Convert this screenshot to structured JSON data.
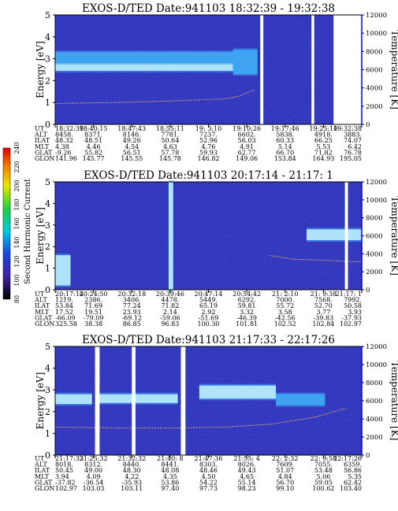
{
  "chart_data": [
    {
      "type": "heatmap",
      "title": "EXOS-D/TED   Date:941103   18:32:39 - 19:32:38",
      "ylabel": "Energy [eV]",
      "y2label": "Temperature [K]",
      "ylim": [
        0,
        5
      ],
      "y2lim": [
        0,
        12000
      ],
      "yticks": [
        "0",
        "1",
        "2",
        "3",
        "4",
        "5"
      ],
      "y2ticks": [
        "0",
        "2000",
        "4000",
        "6000",
        "8000",
        "10000",
        "12000"
      ],
      "x": [
        "18:32:39",
        "18:40:15",
        "18:47:43",
        "18:55:11",
        "19: 3:10",
        "19:10:26",
        "19:17:46",
        "19:25:10",
        "19:32:38"
      ],
      "rows": [
        {
          "label": "UT",
          "values": [
            "18:32:39",
            "18:40:15",
            "18:47:43",
            "18:55:11",
            "19: 3:10",
            "19:10:26",
            "19:17:46",
            "19:25:10",
            "19:32:38"
          ]
        },
        {
          "label": "ALT",
          "values": [
            "8458.",
            "8371.",
            "8146.",
            "7781.",
            "7237.",
            "6602.",
            "5838.",
            "4918.",
            "3883."
          ]
        },
        {
          "label": "ILAT",
          "values": [
            "48.32",
            "48.51",
            "49.26",
            "50.64",
            "52.96",
            "56.03",
            "60.33",
            "66.25",
            "74.07"
          ]
        },
        {
          "label": "MLT",
          "values": [
            "4.38",
            "4.46",
            "4.54",
            "4.63",
            "4.76",
            "4.91",
            "5.14",
            "5.53",
            "6.42"
          ]
        },
        {
          "label": "GLAT",
          "values": [
            "-9.26",
            "55.82",
            "56.51",
            "57.78",
            "59.93",
            "62.77",
            "66.70",
            "71.82",
            "76.78"
          ]
        },
        {
          "label": "GLON",
          "values": [
            "141.96",
            "145.77",
            "145.55",
            "145.78",
            "146.82",
            "149.06",
            "153.84",
            "164.93",
            "195.05"
          ]
        }
      ],
      "bands": [
        {
          "x0": 0.0,
          "x1": 0.58,
          "y0": 2.45,
          "y1": 2.8,
          "intensity": "high"
        },
        {
          "x0": 0.0,
          "x1": 0.58,
          "y0": 2.8,
          "y1": 3.3,
          "intensity": "medium"
        },
        {
          "x0": 0.58,
          "x1": 0.66,
          "y0": 2.3,
          "y1": 3.4,
          "intensity": "medium"
        }
      ],
      "gaps": [
        [
          0.669,
          0.679
        ],
        [
          0.836,
          0.845
        ],
        [
          0.908,
          1.0
        ]
      ],
      "temperature": [
        [
          0.0,
          2300
        ],
        [
          0.2,
          2400
        ],
        [
          0.4,
          2600
        ],
        [
          0.55,
          2800
        ],
        [
          0.6,
          3100
        ],
        [
          0.65,
          3800
        ]
      ]
    },
    {
      "type": "heatmap",
      "title": "EXOS-D/TED   Date:941103  20:17:14 - 21:17: 1",
      "ylabel": "Energy [eV]",
      "y2label": "Temperature [K]",
      "ylim": [
        0,
        5
      ],
      "y2lim": [
        0,
        12000
      ],
      "yticks": [
        "0",
        "1",
        "2",
        "3",
        "4",
        "5"
      ],
      "y2ticks": [
        "0",
        "2000",
        "4000",
        "6000",
        "8000",
        "10000",
        "12000"
      ],
      "x": [
        "20:17:14",
        "20:24:50",
        "20:32:18",
        "20:39:46",
        "20:47:14",
        "20:54:42",
        "21: 2:10",
        "21: 9:38",
        "21:17: 1"
      ],
      "rows": [
        {
          "label": "UT",
          "values": [
            "20:17:14",
            "20:24:50",
            "20:32:18",
            "20:39:46",
            "20:47:14",
            "20:54:42",
            "21: 2:10",
            "21: 9:38",
            "21:17: 1"
          ]
        },
        {
          "label": "ALT",
          "values": [
            "1219.",
            "2386.",
            "3406.",
            "4478.",
            "5449.",
            "6292.",
            "7000.",
            "7568.",
            "7992."
          ]
        },
        {
          "label": "ILAT",
          "values": [
            "53.84",
            "71.69",
            "77.24",
            "71.82",
            "65.19",
            "59.81",
            "55.72",
            "52.70",
            "50.58"
          ]
        },
        {
          "label": "MLT",
          "values": [
            "17.52",
            "19.51",
            "23.93",
            "2.14",
            "2.92",
            "3.32",
            "3.58",
            "3.77",
            "3.93"
          ]
        },
        {
          "label": "GLAT",
          "values": [
            "-66.09",
            "-79.09",
            "-69.12",
            "-59.06",
            "-51.69",
            "-46.39",
            "-42.56",
            "-39.83",
            "-37.93"
          ]
        },
        {
          "label": "GLON",
          "values": [
            "325.58",
            "38.38",
            "86.85",
            "96.83",
            "100.30",
            "101.81",
            "102.52",
            "102.84",
            "102.97"
          ]
        }
      ],
      "bands": [
        {
          "x0": 0.0,
          "x1": 0.05,
          "y0": 0.2,
          "y1": 1.6,
          "intensity": "high"
        },
        {
          "x0": 0.37,
          "x1": 0.385,
          "y0": 0.0,
          "y1": 5.0,
          "intensity": "high"
        },
        {
          "x0": 0.82,
          "x1": 1.0,
          "y0": 2.3,
          "y1": 2.8,
          "intensity": "high"
        }
      ],
      "gaps": [
        [
          0.945,
          0.955
        ]
      ],
      "temperature": [
        [
          0.7,
          3800
        ],
        [
          0.78,
          3400
        ],
        [
          0.85,
          3300
        ],
        [
          0.93,
          3200
        ],
        [
          1.0,
          3100
        ]
      ]
    },
    {
      "type": "heatmap",
      "title": "EXOS-D/TED   Date:941103   21:17:33 - 22:17:26",
      "ylabel": "Energy [eV]",
      "y2label": "Temperature [K]",
      "ylim": [
        0,
        5
      ],
      "y2lim": [
        0,
        12000
      ],
      "yticks": [
        "0",
        "1",
        "2",
        "3",
        "4",
        "5"
      ],
      "y2ticks": [
        "0",
        "2000",
        "4000",
        "6000",
        "8000",
        "10000",
        "12000"
      ],
      "x": [
        "21:17:33",
        "21:25:32",
        "21:32:32",
        "21:40: 8",
        "21:47:36",
        "21:55: 4",
        "22: 2:32",
        "22: 9:58",
        "22:17:26"
      ],
      "rows": [
        {
          "label": "UT",
          "values": [
            "21:17:33",
            "21:25:32",
            "21:32:32",
            "21:40: 8",
            "21:47:36",
            "21:55: 4",
            "22: 2:32",
            "22: 9:58",
            "22:17:26"
          ]
        },
        {
          "label": "ALT",
          "values": [
            "8018.",
            "8312.",
            "8440.",
            "8441.",
            "8303.",
            "8026.",
            "7609.",
            "7055.",
            "6359."
          ]
        },
        {
          "label": "ILAT",
          "values": [
            "50.45",
            "49.00",
            "48.30",
            "48.08",
            "48.46",
            "49.43",
            "51.07",
            "53.48",
            "56.86"
          ]
        },
        {
          "label": "MLT",
          "values": [
            "3.94",
            "4.09",
            "4.22",
            "4.35",
            "4.50",
            "4.65",
            "4.84",
            "5.06",
            "5.35"
          ]
        },
        {
          "label": "GLAT",
          "values": [
            "-37.82",
            "-36.54",
            "-35.93",
            "53.86",
            "54.22",
            "55.14",
            "56.70",
            "59.05",
            "62.42"
          ]
        },
        {
          "label": "GLON",
          "values": [
            "102.97",
            "103.03",
            "103.11",
            "97.40",
            "97.73",
            "98.23",
            "99.10",
            "100.62",
            "103.40"
          ]
        }
      ],
      "bands": [
        {
          "x0": 0.0,
          "x1": 0.12,
          "y0": 2.35,
          "y1": 2.8,
          "intensity": "high"
        },
        {
          "x0": 0.14,
          "x1": 0.28,
          "y0": 2.4,
          "y1": 2.8,
          "intensity": "high"
        },
        {
          "x0": 0.28,
          "x1": 0.4,
          "y0": 2.4,
          "y1": 2.8,
          "intensity": "high"
        },
        {
          "x0": 0.47,
          "x1": 0.72,
          "y0": 2.6,
          "y1": 3.2,
          "intensity": "high"
        },
        {
          "x0": 0.72,
          "x1": 0.88,
          "y0": 2.3,
          "y1": 2.8,
          "intensity": "medium"
        }
      ],
      "gaps": [
        [
          0.13,
          0.145
        ],
        [
          0.25,
          0.262
        ],
        [
          0.41,
          0.425
        ]
      ],
      "temperature": [
        [
          0.0,
          3100
        ],
        [
          0.2,
          3000
        ],
        [
          0.4,
          3000
        ],
        [
          0.55,
          3100
        ],
        [
          0.7,
          3400
        ],
        [
          0.85,
          4200
        ],
        [
          0.95,
          5200
        ]
      ]
    }
  ],
  "colorbar": {
    "label": "Second Harmonic Current",
    "ticks": [
      "80",
      "100",
      "120",
      "140",
      "160",
      "180",
      "200",
      "220",
      "240"
    ]
  },
  "colors": {
    "background_field": "#2a34b8",
    "band_medium": "#3fa8f2",
    "band_high": "#bdeffe",
    "gap": "#ffffff",
    "temperature_trace": "#e0a070",
    "right_axis": "#0000ff"
  }
}
